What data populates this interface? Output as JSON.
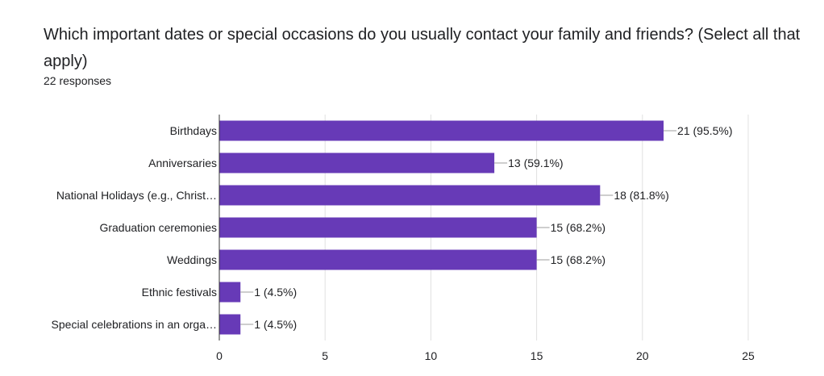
{
  "question": {
    "title": "Which important dates or special occasions do you usually contact your family and friends? (Select all that apply)",
    "responses_label": "22 responses"
  },
  "colors": {
    "bar": "#673ab7",
    "bar_stroke": "#5a2fa3",
    "grid": "#e0e0e0",
    "axis": "#333333",
    "text": "#202124"
  },
  "chart_data": {
    "type": "bar",
    "orientation": "horizontal",
    "categories": [
      "Birthdays",
      "Anniversaries",
      "National Holidays (e.g., Christ…",
      "Graduation ceremonies",
      "Weddings",
      "Ethnic festivals",
      "Special celebrations in an orga…"
    ],
    "values": [
      21,
      13,
      18,
      15,
      15,
      1,
      1
    ],
    "data_labels": [
      "21 (95.5%)",
      "13 (59.1%)",
      "18 (81.8%)",
      "15 (68.2%)",
      "15 (68.2%)",
      "1 (4.5%)",
      "1 (4.5%)"
    ],
    "xlim": [
      0,
      25
    ],
    "xticks": [
      0,
      5,
      10,
      15,
      20,
      25
    ],
    "grid": true
  }
}
